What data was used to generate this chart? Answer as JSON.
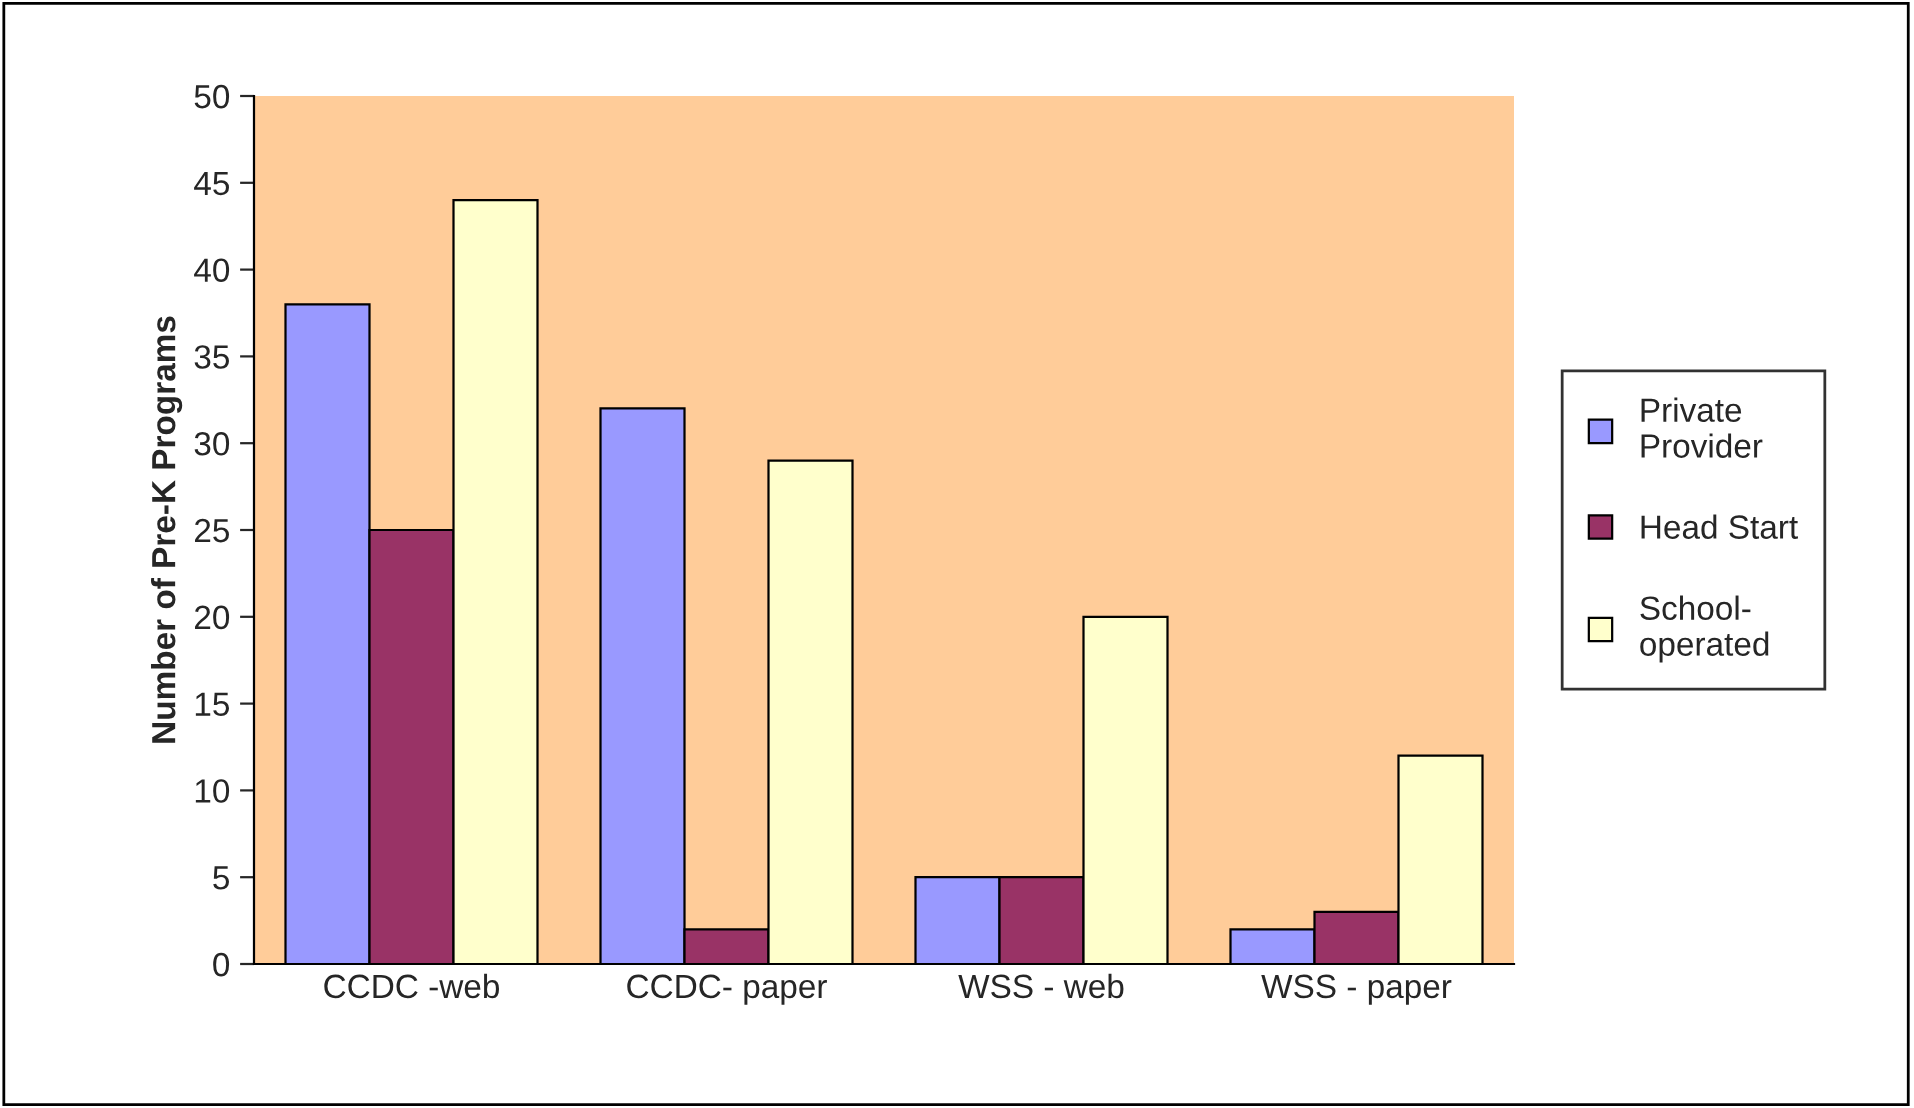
{
  "chart_data": {
    "type": "bar",
    "ylabel": "Number of Pre-K Programs",
    "categories": [
      "CCDC -web",
      "CCDC- paper",
      "WSS - web",
      "WSS - paper"
    ],
    "series": [
      {
        "name": "Private\nProvider",
        "color": "#9999ff",
        "values": [
          38,
          32,
          5,
          2
        ]
      },
      {
        "name": "Head Start",
        "color": "#993366",
        "values": [
          25,
          2,
          5,
          3
        ]
      },
      {
        "name": "School-\noperated",
        "color": "#ffffcc",
        "values": [
          44,
          29,
          20,
          12
        ]
      }
    ],
    "ylim": [
      0,
      50
    ],
    "yticks": [
      0,
      5,
      10,
      15,
      20,
      25,
      30,
      35,
      40,
      45,
      50
    ],
    "grid": false,
    "legend": "right"
  }
}
